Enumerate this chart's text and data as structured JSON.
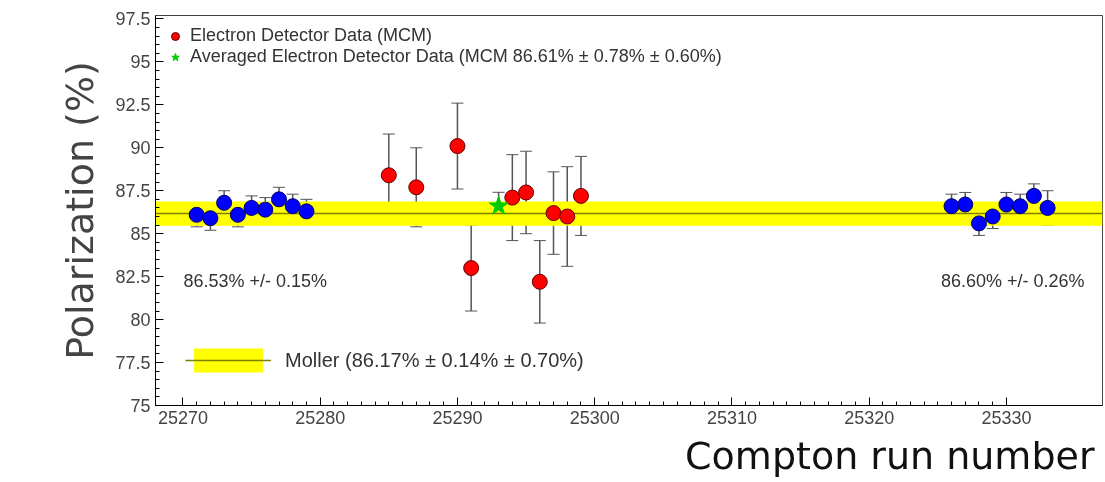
{
  "chart_data": {
    "type": "scatter",
    "xlabel": "Compton run number",
    "ylabel": "Polarization (%)",
    "xlim": [
      25268,
      25337
    ],
    "ylim": [
      75,
      97.7
    ],
    "xticks": [
      25270,
      25280,
      25290,
      25300,
      25310,
      25320,
      25330
    ],
    "yticks": [
      75,
      {
        "value": 77.5,
        "label": "77.5"
      },
      80,
      {
        "value": 82.5,
        "label": "82.5"
      },
      85,
      {
        "value": 87.5,
        "label": "87.5"
      },
      90,
      {
        "value": 92.5,
        "label": "92.5"
      },
      95,
      {
        "value": 97.5,
        "label": "97.5"
      }
    ],
    "grid": false,
    "legend": "top left",
    "marker": "circle",
    "series": [
      {
        "color": "#0000ff",
        "x": [
          25271,
          25272,
          25273,
          25274,
          25275,
          25276,
          25277,
          25278,
          25279,
          25326,
          25327,
          25328,
          25329,
          25330,
          25331,
          25332,
          25333
        ],
        "values": [
          86.1,
          85.9,
          86.8,
          86.1,
          86.5,
          86.4,
          87.0,
          86.6,
          86.3,
          86.6,
          86.7,
          85.6,
          86.0,
          86.7,
          86.6,
          87.2,
          86.5
        ],
        "errors": [
          0.7,
          0.7,
          0.7,
          0.7,
          0.7,
          0.7,
          0.7,
          0.7,
          0.7,
          0.7,
          0.7,
          0.7,
          0.7,
          0.7,
          0.7,
          0.7,
          1.0
        ]
      },
      {
        "name": "Electron Detector Data (MCM)",
        "color": "#ff0000",
        "x": [
          25285,
          25287,
          25290,
          25291,
          25294,
          25295,
          25296,
          25297,
          25298,
          25299
        ],
        "values": [
          88.4,
          87.7,
          90.1,
          83.0,
          87.1,
          87.4,
          82.2,
          86.2,
          86.0,
          87.2
        ],
        "errors": [
          2.4,
          2.3,
          2.5,
          2.5,
          2.5,
          2.4,
          2.4,
          2.4,
          2.9,
          2.3
        ]
      },
      {
        "name": "Averaged Electron Detector Data (MCM 86.61% ± 0.78% ± 0.60%)",
        "color": "#00cc00",
        "marker": "star",
        "x": [
          25293
        ],
        "values": [
          86.61
        ],
        "errors": [
          0.8
        ]
      }
    ],
    "bands": [
      {
        "axis": "y",
        "from": 85.46,
        "to": 86.88,
        "color": "#ffff00",
        "label": "Moller (86.17% ± 0.14% ± 0.70%)"
      }
    ],
    "ref_lines": [
      {
        "axis": "y",
        "value": 86.17,
        "color": "#808000"
      }
    ],
    "annotations": [
      "86.53% +/- 0.15%",
      "86.60% +/- 0.26%"
    ]
  }
}
